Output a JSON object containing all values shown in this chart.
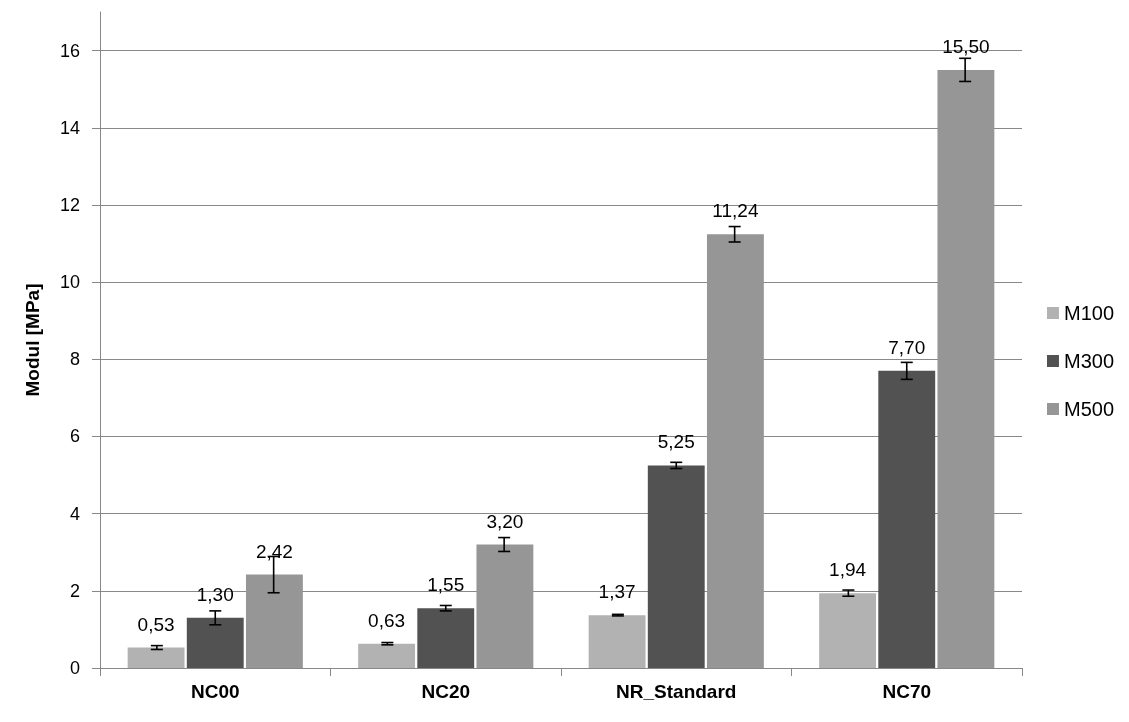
{
  "chart_data": {
    "type": "bar",
    "ylabel": "Modul [MPa]",
    "categories": [
      "NC00",
      "NC20",
      "NR_Standard",
      "NC70"
    ],
    "series": [
      {
        "name": "M100",
        "color": "#b2b2b2",
        "values": [
          0.53,
          0.63,
          1.37,
          1.94
        ],
        "errors": [
          0.05,
          0.03,
          0.02,
          0.08
        ],
        "value_labels": [
          "0,53",
          "0,63",
          "1,37",
          "1,94"
        ]
      },
      {
        "name": "M300",
        "color": "#525252",
        "values": [
          1.3,
          1.55,
          5.25,
          7.7
        ],
        "errors": [
          0.18,
          0.07,
          0.08,
          0.22
        ],
        "value_labels": [
          "1,30",
          "1,55",
          "5,25",
          "7,70"
        ]
      },
      {
        "name": "M500",
        "color": "#969696",
        "values": [
          2.42,
          3.2,
          11.24,
          15.5
        ],
        "errors": [
          0.47,
          0.18,
          0.2,
          0.3
        ],
        "value_labels": [
          "2,42",
          "3,20",
          "11,24",
          "15,50"
        ]
      }
    ],
    "ylim": [
      0,
      17
    ],
    "yticks": [
      0,
      2,
      4,
      6,
      8,
      10,
      12,
      14,
      16
    ],
    "grid": "y",
    "legend": "right"
  }
}
